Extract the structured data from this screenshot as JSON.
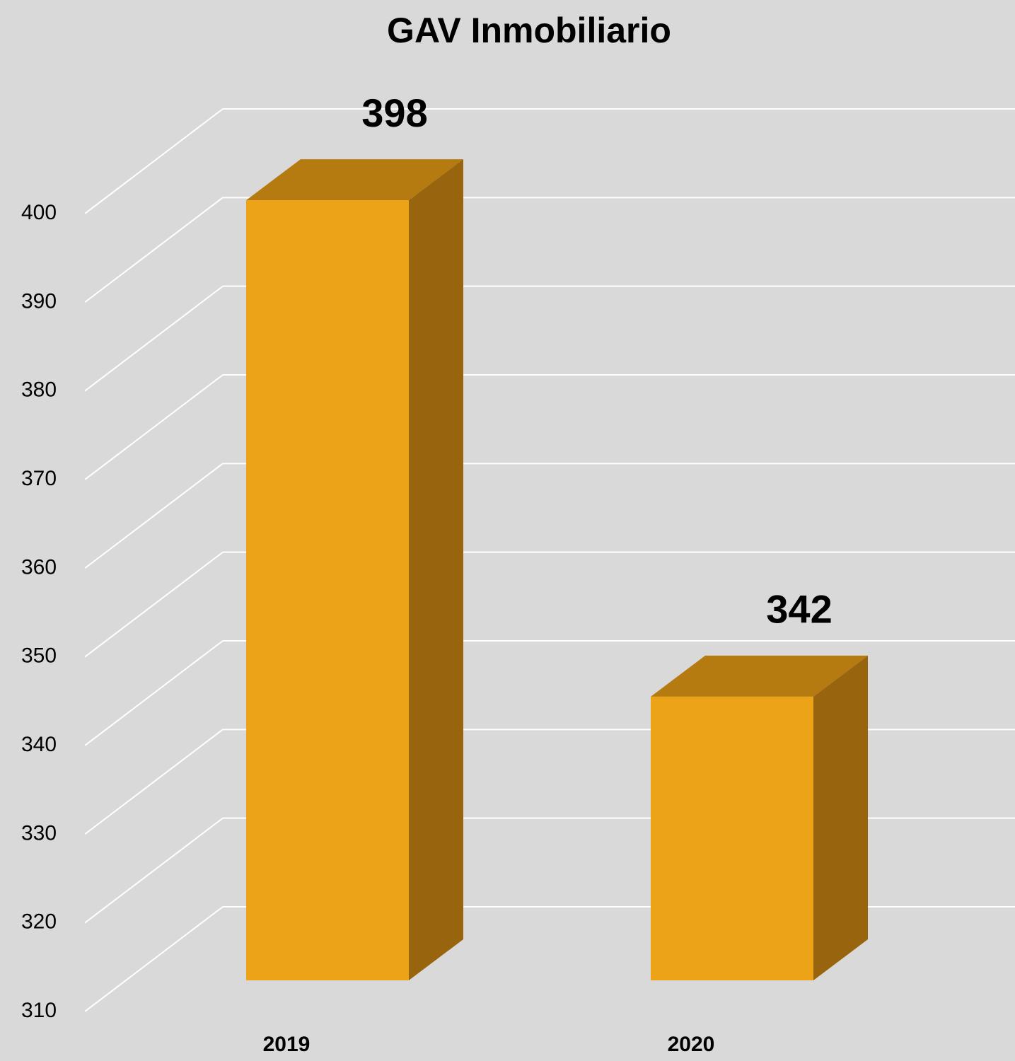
{
  "chart_data": {
    "type": "bar3d",
    "title": "GAV Inmobiliario",
    "categories": [
      "2019",
      "2020"
    ],
    "values": [
      398,
      342
    ],
    "colors": {
      "front": "#eca317",
      "top": "#b57b10",
      "side": "#98650e"
    },
    "ylim": [
      310,
      400
    ],
    "yticks": [
      310,
      320,
      330,
      340,
      350,
      360,
      370,
      380,
      390,
      400
    ],
    "grid": true
  }
}
